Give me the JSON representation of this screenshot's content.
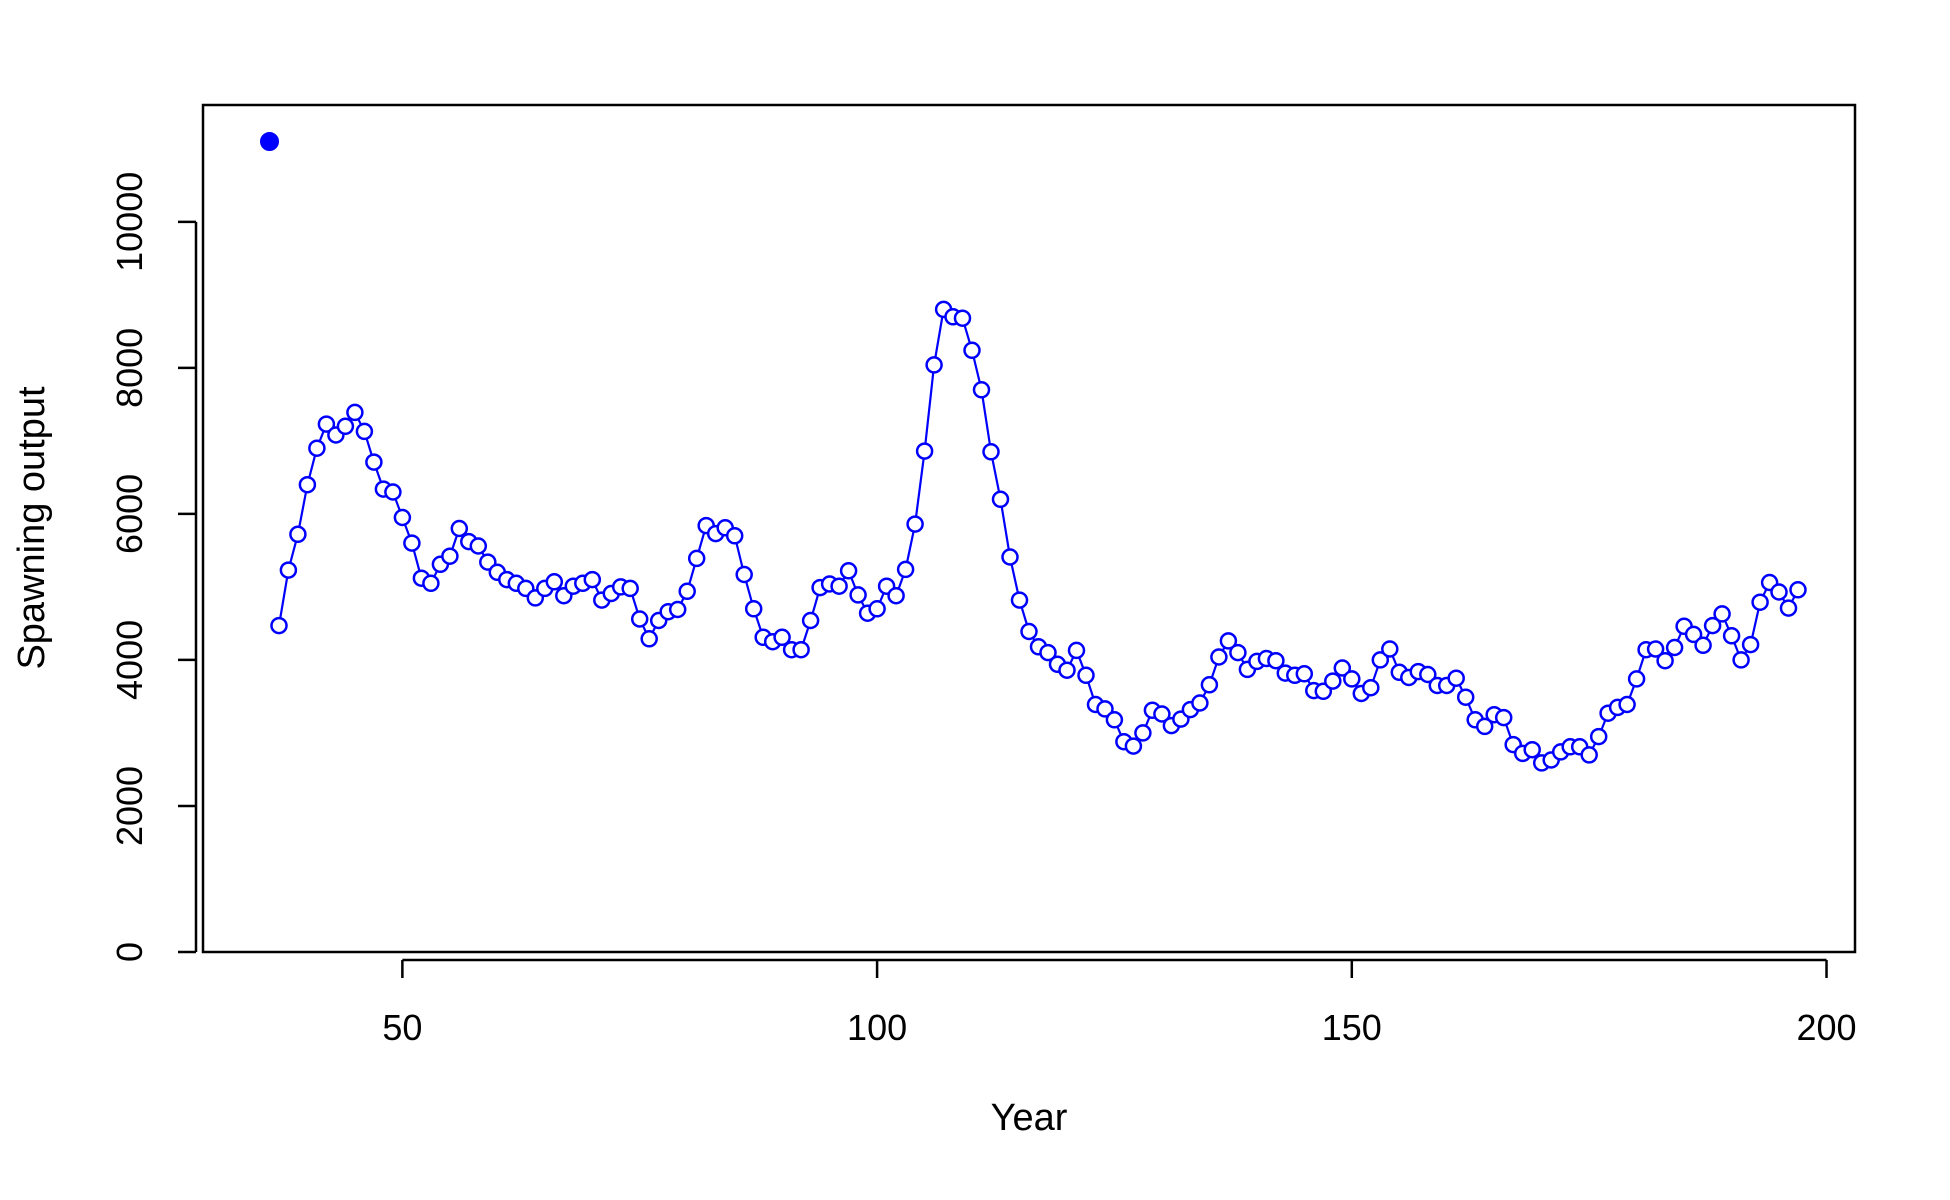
{
  "chart_data": {
    "type": "line",
    "title": "",
    "xlabel": "Year",
    "ylabel": "Spawning output",
    "xlim": [
      29,
      203
    ],
    "ylim": [
      0,
      11600
    ],
    "xticks": [
      50,
      100,
      150,
      200
    ],
    "yticks": [
      0,
      2000,
      4000,
      6000,
      8000,
      10000
    ],
    "xtick_labels": [
      "50",
      "100",
      "150",
      "200"
    ],
    "ytick_labels": [
      "0",
      "2000",
      "4000",
      "6000",
      "8000",
      "10000"
    ],
    "grid": false,
    "legend": "none",
    "line_color": "#0000ff",
    "virgin_point": {
      "x": 36,
      "y": 11100
    },
    "series": [
      {
        "x": [
          37,
          38,
          39,
          40,
          41,
          42,
          43,
          44,
          45,
          46,
          47,
          48,
          49,
          50,
          51,
          52,
          53,
          54,
          55,
          56,
          57,
          58,
          59,
          60,
          61,
          62,
          63,
          64,
          65,
          66,
          67,
          68,
          69,
          70,
          71,
          72,
          73,
          74,
          75,
          76,
          77,
          78,
          79,
          80,
          81,
          82,
          83,
          84,
          85,
          86,
          87,
          88,
          89,
          90,
          91,
          92,
          93,
          94,
          95,
          96,
          97,
          98,
          99,
          100,
          101,
          102,
          103,
          104,
          105,
          106,
          107,
          108,
          109,
          110,
          111,
          112,
          113,
          114,
          115,
          116,
          117,
          118,
          119,
          120,
          121,
          122,
          123,
          124,
          125,
          126,
          127,
          128,
          129,
          130,
          131,
          132,
          133,
          134,
          135,
          136,
          137,
          138,
          139,
          140,
          141,
          142,
          143,
          144,
          145,
          146,
          147,
          148,
          149,
          150,
          151,
          152,
          153,
          154,
          155,
          156,
          157,
          158,
          159,
          160,
          161,
          162,
          163,
          164,
          165,
          166,
          167,
          168,
          169,
          170,
          171,
          172,
          173,
          174,
          175,
          176,
          177,
          178,
          179,
          180,
          181,
          182,
          183,
          184,
          185,
          186,
          187,
          188,
          189,
          190,
          191,
          192,
          193,
          194,
          195,
          196,
          197
        ],
        "values": [
          4470,
          5230,
          5720,
          6400,
          6900,
          7230,
          7080,
          7200,
          7390,
          7130,
          6710,
          6340,
          6300,
          5950,
          5600,
          5120,
          5050,
          5310,
          5420,
          5800,
          5620,
          5560,
          5340,
          5200,
          5100,
          5050,
          4980,
          4850,
          4980,
          5070,
          4880,
          5010,
          5050,
          5100,
          4820,
          4910,
          5000,
          4980,
          4560,
          4290,
          4540,
          4660,
          4690,
          4940,
          5390,
          5840,
          5730,
          5810,
          5700,
          5170,
          4700,
          4310,
          4250,
          4310,
          4140,
          4140,
          4540,
          4990,
          5040,
          5010,
          5220,
          4890,
          4640,
          4700,
          5010,
          4880,
          5240,
          5860,
          6860,
          8040,
          8800,
          8700,
          8680,
          8240,
          7700,
          6850,
          6200,
          5410,
          4820,
          4390,
          4180,
          4100,
          3940,
          3860,
          4130,
          3790,
          3390,
          3330,
          3180,
          2880,
          2820,
          3000,
          3310,
          3260,
          3100,
          3190,
          3320,
          3410,
          3660,
          4040,
          4260,
          4100,
          3870,
          3980,
          4020,
          3990,
          3820,
          3790,
          3810,
          3580,
          3570,
          3710,
          3890,
          3740,
          3540,
          3620,
          4000,
          4150,
          3830,
          3760,
          3840,
          3800,
          3650,
          3650,
          3750,
          3490,
          3180,
          3090,
          3250,
          3210,
          2840,
          2720,
          2770,
          2590,
          2630,
          2740,
          2810,
          2810,
          2700,
          2950,
          3270,
          3350,
          3390,
          3740,
          4140,
          4150,
          3990,
          4170,
          4460,
          4350,
          4200,
          4470,
          4630,
          4330,
          4000,
          4210,
          4790,
          5060,
          4930,
          4710,
          4960
        ]
      }
    ]
  }
}
